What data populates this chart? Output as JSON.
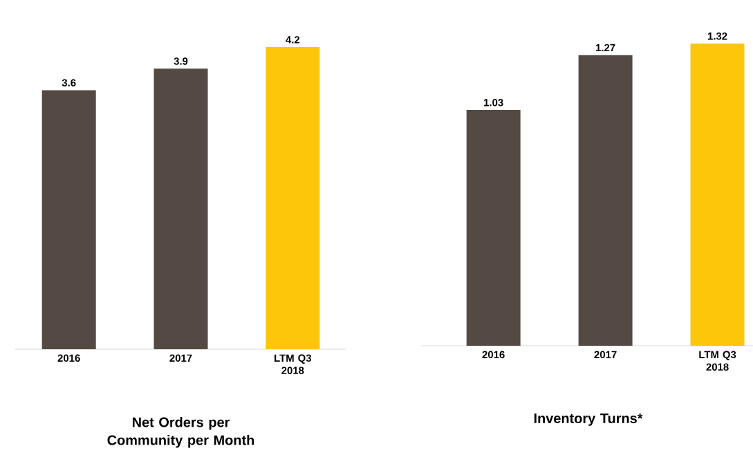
{
  "chart_data": [
    {
      "type": "bar",
      "title": "Net Orders per Community per Month",
      "categories": [
        "2016",
        "2017",
        "LTM Q3 2018"
      ],
      "values": [
        3.6,
        3.9,
        4.2
      ],
      "colors": [
        "#554943",
        "#554943",
        "#fdc60a"
      ],
      "data_labels": true
    },
    {
      "type": "bar",
      "title": "Inventory Turns*",
      "categories": [
        "2016",
        "2017",
        "LTM Q3 2018"
      ],
      "values": [
        1.03,
        1.27,
        1.32
      ],
      "colors": [
        "#554943",
        "#554943",
        "#fdc60a"
      ],
      "data_labels": true
    }
  ]
}
